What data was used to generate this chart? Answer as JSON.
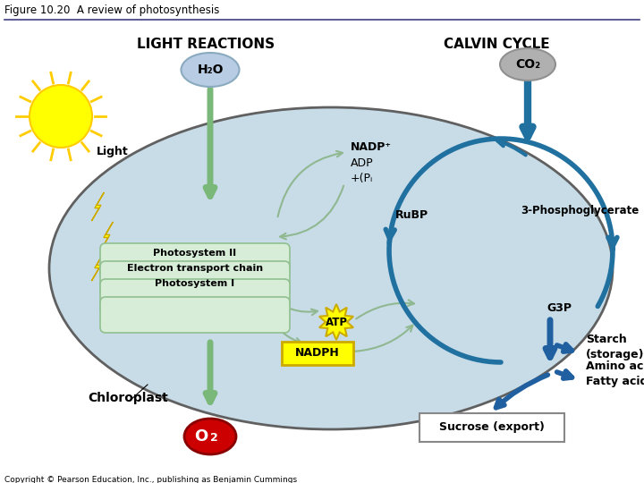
{
  "title": "Figure 10.20  A review of photosynthesis",
  "copyright": "Copyright © Pearson Education, Inc., publishing as Benjamin Cummings",
  "light_reactions_label": "LIGHT REACTIONS",
  "calvin_cycle_label": "CALVIN CYCLE",
  "h2o_label": "H₂O",
  "co2_label": "CO₂",
  "o2_label": "O₂",
  "light_label": "Light",
  "nadp_label": "NADP⁺",
  "adp_label": "ADP",
  "pi_label": "+(Pᵢ",
  "rubp_label": "RuBP",
  "three_pg_label": "3-Phosphoglycerate",
  "g3p_label": "G3P",
  "atp_label": "ATP",
  "nadph_label": "NADPH",
  "starch_label": "Starch\n(storage)",
  "amino_fatty_label": "Amino acids\nFatty acids",
  "sucrose_label": "Sucrose (export)",
  "chloroplast_label": "Chloroplast",
  "photosystem_label": "Photosystem II\nElectron transport chain\nPhotosystem I",
  "bg_color": "#ffffff",
  "cell_color": "#c8dce8",
  "cell_border_color": "#606060",
  "h2o_bubble_color": "#b8cce4",
  "co2_bubble_color": "#b0b0b0",
  "o2_bubble_color": "#cc0000",
  "green_arrow_color": "#7ab87a",
  "teal_arrow_color": "#2070a0",
  "nadph_box_color": "#ffff00",
  "nadph_box_border": "#ccaa00",
  "atp_star_color": "#ffff00",
  "atp_star_border": "#ccaa00",
  "sucrose_box_color": "#ffffff",
  "sucrose_box_border": "#888888",
  "starch_arrow_color": "#2060a0",
  "photosystem_fill": "#d8edd8",
  "photosystem_border": "#90c090",
  "sun_color": "#ffff00",
  "sun_border": "#ffcc00",
  "lightning_color": "#ffff00",
  "lightning_border": "#ccaa00"
}
